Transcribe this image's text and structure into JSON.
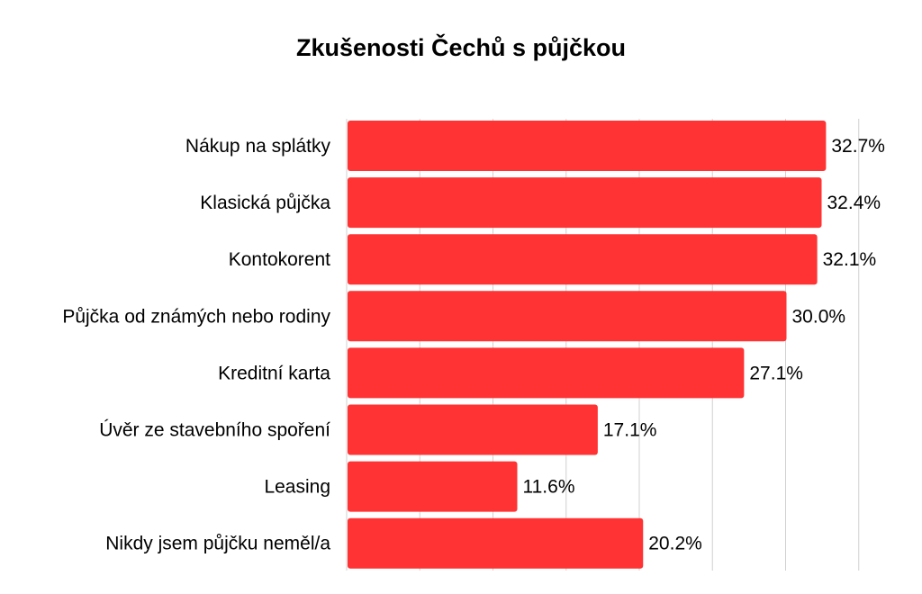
{
  "chart_data": {
    "type": "bar",
    "orientation": "horizontal",
    "title": "Zkušenosti Čechů s půjčkou",
    "categories": [
      "Nákup na splátky",
      "Klasická půjčka",
      "Kontokorent",
      "Půjčka od známých nebo rodiny",
      "Kreditní karta",
      "Úvěr ze stavebního spoření",
      "Leasing",
      "Nikdy jsem půjčku neměl/a"
    ],
    "values": [
      32.7,
      32.4,
      32.1,
      30.0,
      27.1,
      17.1,
      11.6,
      20.2
    ],
    "value_labels": [
      "32.7%",
      "32.4%",
      "32.1%",
      "30.0%",
      "27.1%",
      "17.1%",
      "11.6%",
      "20.2%"
    ],
    "xlim": [
      0,
      35
    ],
    "grid": true,
    "bar_color": "#FF3333",
    "gridline_color": "#D0D0D0"
  }
}
